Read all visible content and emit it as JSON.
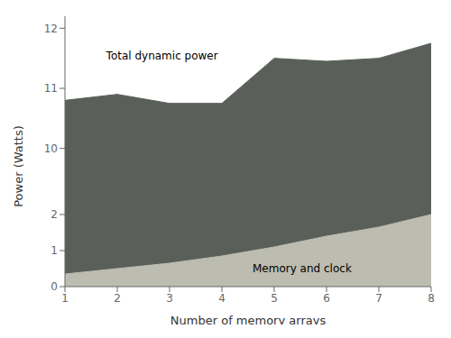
{
  "chart_data": [
    {
      "type": "area",
      "x": [
        1,
        2,
        3,
        4,
        5,
        6,
        7,
        8
      ],
      "series": [
        {
          "color": "#5a5f5a",
          "values": [
            10.8,
            10.9,
            10.75,
            10.75,
            11.5,
            11.45,
            11.5,
            11.75
          ]
        }
      ],
      "xlim": [
        1,
        8
      ],
      "ylim": [
        9.5,
        12.2
      ],
      "yticks": [
        10,
        11,
        12
      ],
      "ylabel": "Power (Watts)",
      "tick_labels": "y",
      "grid": false,
      "annotations": [
        {
          "text": "Total dynamic power",
          "x": 1.7,
          "y": 11.55
        }
      ]
    },
    {
      "type": "area",
      "x": [
        1,
        2,
        3,
        4,
        5,
        6,
        7,
        8
      ],
      "series": [
        {
          "color": "#bcbcb0",
          "values": [
            0.35,
            0.5,
            0.65,
            0.85,
            1.1,
            1.4,
            1.65,
            2.0
          ]
        }
      ],
      "color": "#5a5f5a",
      "xlim": [
        1,
        8
      ],
      "xticks": [
        1,
        2,
        3,
        4,
        5,
        6,
        7,
        8
      ],
      "ylim": [
        0,
        3
      ],
      "yticks": [
        0,
        1,
        2
      ],
      "xlabel": "Number of memory arrays",
      "grid": false,
      "annotations": [
        {
          "text": "Memory and clock",
          "x": 4.5,
          "y": 0.5
        }
      ]
    }
  ]
}
